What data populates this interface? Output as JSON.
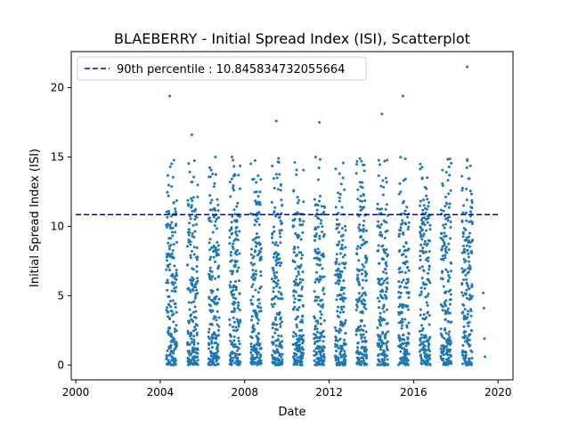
{
  "chart_data": {
    "type": "scatter",
    "title": "BLAEBERRY - Initial Spread Index (ISI), Scatterplot",
    "xlabel": "Date",
    "ylabel": "Initial Spread Index (ISI)",
    "xlim": [
      "1999-10-15",
      "2020-09-15"
    ],
    "ylim": [
      -1.07,
      22.6
    ],
    "x_ticks": [
      "2000",
      "2004",
      "2008",
      "2012",
      "2016",
      "2020"
    ],
    "y_ticks": [
      0,
      5,
      10,
      15,
      20
    ],
    "grid": false,
    "legend": {
      "placement": "top-left",
      "entries": [
        "90th percentile : 10.845834732055664"
      ]
    },
    "reference_line": {
      "label": "90th percentile : 10.845834732055664",
      "y": 10.845834732055664,
      "x_start": "2000-01-01",
      "x_end": "2020-01-01",
      "style": "dashed",
      "color": "#0000cc"
    },
    "point_color": "#1f77b4",
    "fire_seasons": [
      {
        "year": 2004,
        "start": "2004-04-15",
        "end": "2004-10-15"
      },
      {
        "year": 2005,
        "start": "2005-04-15",
        "end": "2005-10-15"
      },
      {
        "year": 2006,
        "start": "2006-04-15",
        "end": "2006-10-15"
      },
      {
        "year": 2007,
        "start": "2007-04-15",
        "end": "2007-10-15"
      },
      {
        "year": 2008,
        "start": "2008-04-15",
        "end": "2008-10-15"
      },
      {
        "year": 2009,
        "start": "2009-04-15",
        "end": "2009-10-15"
      },
      {
        "year": 2010,
        "start": "2010-04-15",
        "end": "2010-10-15"
      },
      {
        "year": 2011,
        "start": "2011-04-15",
        "end": "2011-10-15"
      },
      {
        "year": 2012,
        "start": "2012-04-15",
        "end": "2012-10-15"
      },
      {
        "year": 2013,
        "start": "2013-04-15",
        "end": "2013-10-15"
      },
      {
        "year": 2014,
        "start": "2014-04-15",
        "end": "2014-10-15"
      },
      {
        "year": 2015,
        "start": "2015-04-15",
        "end": "2015-10-15"
      },
      {
        "year": 2016,
        "start": "2016-04-15",
        "end": "2016-10-15"
      },
      {
        "year": 2017,
        "start": "2017-04-15",
        "end": "2017-10-15"
      },
      {
        "year": 2018,
        "start": "2018-04-15",
        "end": "2018-10-15"
      }
    ],
    "notable_points": [
      {
        "x": "2004-06-15",
        "y": 19.4
      },
      {
        "x": "2005-07-01",
        "y": 16.6
      },
      {
        "x": "2009-07-01",
        "y": 17.6
      },
      {
        "x": "2011-07-15",
        "y": 17.5
      },
      {
        "x": "2014-07-01",
        "y": 18.1
      },
      {
        "x": "2015-07-01",
        "y": 19.4
      },
      {
        "x": "2018-07-15",
        "y": 21.5
      },
      {
        "x": "2019-04-20",
        "y": 5.2
      },
      {
        "x": "2019-05-01",
        "y": 4.1
      },
      {
        "x": "2019-05-10",
        "y": 1.9
      },
      {
        "x": "2019-05-20",
        "y": 0.6
      }
    ]
  }
}
